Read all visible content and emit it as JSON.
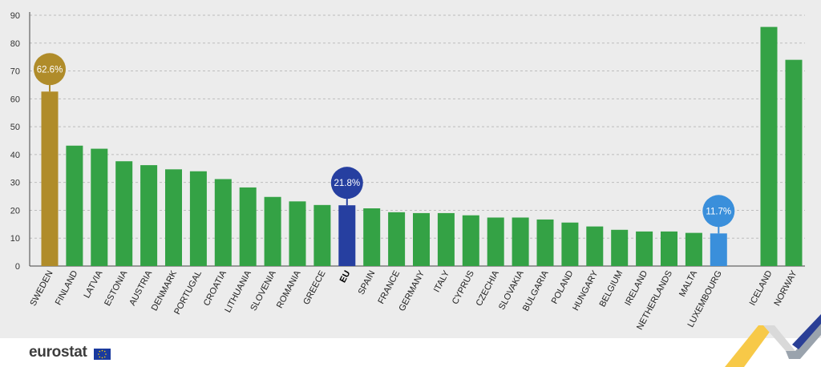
{
  "chart_data": {
    "type": "bar",
    "ylim": [
      0,
      90
    ],
    "yticks": [
      0,
      10,
      20,
      30,
      40,
      50,
      60,
      70,
      80,
      90
    ],
    "grid": true,
    "categories": [
      "SWEDEN",
      "FINLAND",
      "LATVIA",
      "ESTONIA",
      "AUSTRIA",
      "DENMARK",
      "PORTUGAL",
      "CROATIA",
      "LITHUANIA",
      "SLOVENIA",
      "ROMANIA",
      "GREECE",
      "EU",
      "SPAIN",
      "FRANCE",
      "GERMANY",
      "ITALY",
      "CYPRUS",
      "CZECHIA",
      "SLOVAKIA",
      "BULGARIA",
      "POLAND",
      "HUNGARY",
      "BELGIUM",
      "IRELAND",
      "NETHERLANDS",
      "MALTA",
      "LUXEMBOURG",
      "ICELAND",
      "NORWAY"
    ],
    "values": [
      62.6,
      43.2,
      42.1,
      37.6,
      36.2,
      34.7,
      34.0,
      31.2,
      28.2,
      24.8,
      23.2,
      21.9,
      21.8,
      20.7,
      19.3,
      19.0,
      19.0,
      18.2,
      17.4,
      17.4,
      16.7,
      15.6,
      14.2,
      13.0,
      12.4,
      12.4,
      11.9,
      11.7,
      85.8,
      74.0
    ],
    "highlights": [
      {
        "category": "SWEDEN",
        "label": "62.6%",
        "color": "#b08c2a"
      },
      {
        "category": "EU",
        "label": "21.8%",
        "color": "#263fa0"
      },
      {
        "category": "LUXEMBOURG",
        "label": "11.7%",
        "color": "#3a8fdb"
      }
    ],
    "bar_color": "#34a245",
    "gridline_color": "#bdbdbd"
  },
  "footer": {
    "logo_text": "eurostat"
  }
}
